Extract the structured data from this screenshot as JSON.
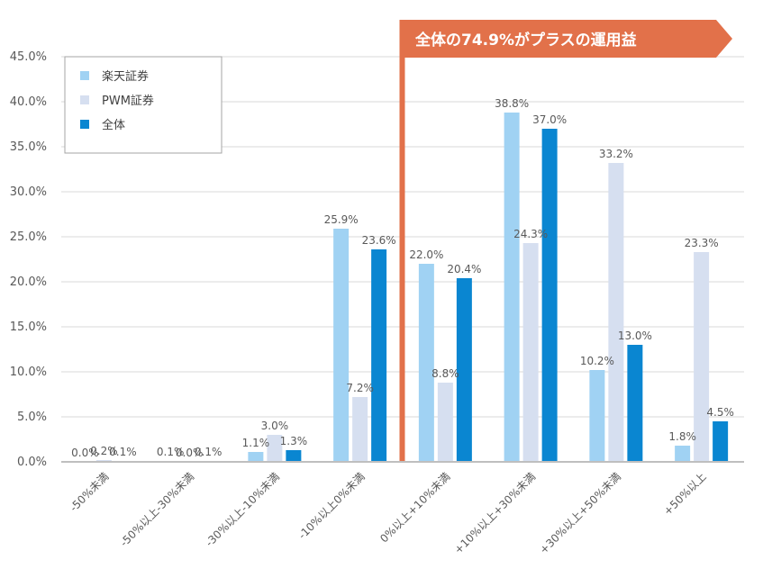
{
  "chart_data": {
    "type": "bar",
    "ylim": [
      0,
      45
    ],
    "ytick_step": 5,
    "ytick_labels": [
      "0.0%",
      "5.0%",
      "10.0%",
      "15.0%",
      "20.0%",
      "25.0%",
      "30.0%",
      "35.0%",
      "40.0%",
      "45.0%"
    ],
    "categories": [
      "-50%未満",
      "-50%以上-30%未満",
      "-30%以上-10%未満",
      "-10%以上0%未満",
      "0%以上+10%未満",
      "+10%以上+30%未満",
      "+30%以上+50%未満",
      "+50%以上"
    ],
    "series": [
      {
        "name": "楽天証券",
        "color": "#a0d2f3",
        "values": [
          0.0,
          0.1,
          1.1,
          25.9,
          22.0,
          38.8,
          10.2,
          1.8
        ],
        "labels": [
          "0.0%",
          "0.1%",
          "1.1%",
          "25.9%",
          "22.0%",
          "38.8%",
          "10.2%",
          "1.8%"
        ]
      },
      {
        "name": "PWM証券",
        "color": "#d6dff0",
        "values": [
          0.2,
          0.0,
          3.0,
          7.2,
          8.8,
          24.3,
          33.2,
          23.3
        ],
        "labels": [
          "0.2%",
          "0.0%",
          "3.0%",
          "7.2%",
          "8.8%",
          "24.3%",
          "33.2%",
          "23.3%"
        ]
      },
      {
        "name": "全体",
        "color": "#0a86d1",
        "values": [
          0.1,
          0.1,
          1.3,
          23.6,
          20.4,
          37.0,
          13.0,
          4.5
        ],
        "labels": [
          "0.1%",
          "0.1%",
          "1.3%",
          "23.6%",
          "20.4%",
          "37.0%",
          "13.0%",
          "4.5%"
        ]
      }
    ],
    "annotation": {
      "text": "全体の74.9%がプラスの運用益",
      "color": "#e2714a"
    },
    "divider_color": "#e2714a",
    "legend_position": "top-left"
  }
}
